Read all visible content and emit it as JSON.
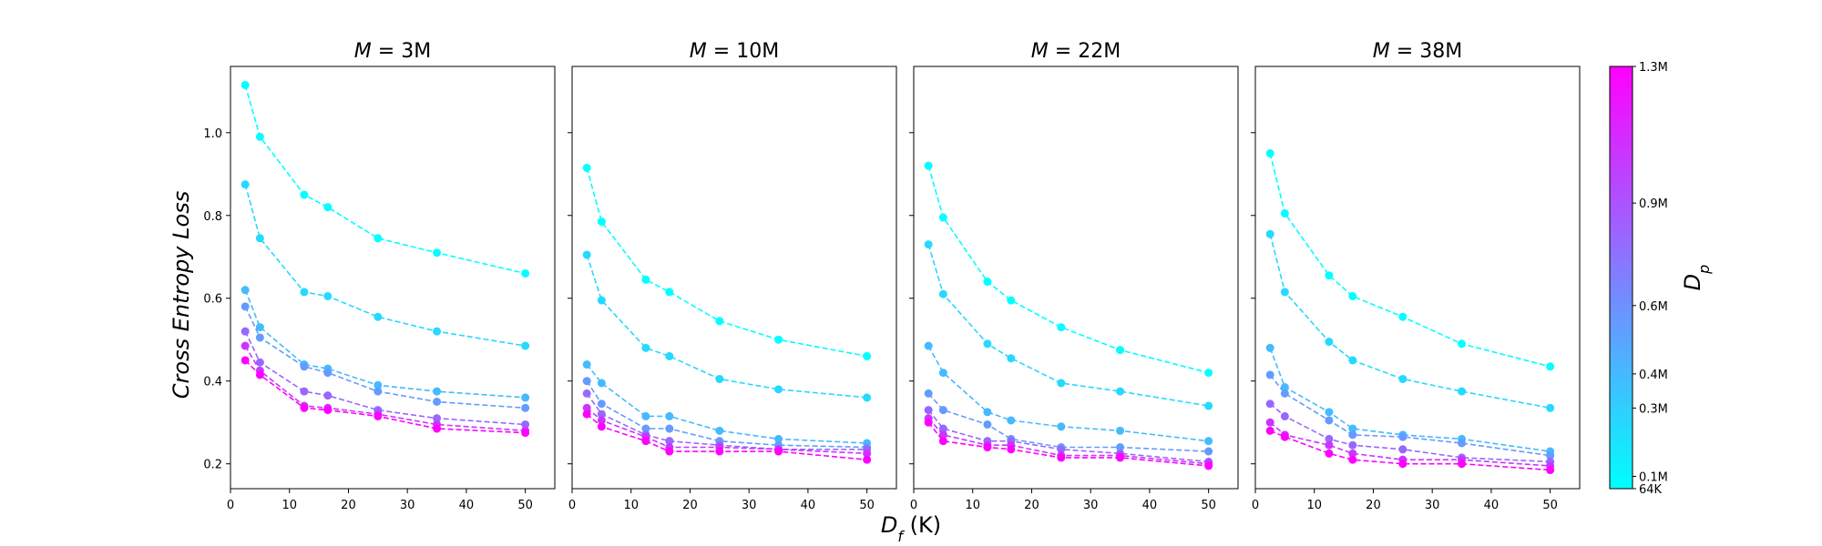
{
  "figure": {
    "ylabel": "Cross Entropy Loss",
    "xlabel_main": "D",
    "xlabel_sub": "f",
    "xlabel_unit": " (K)",
    "colorbar": {
      "label_main": "D",
      "label_sub": "p",
      "ticks": [
        {
          "value": 0.064,
          "label": "64K"
        },
        {
          "value": 0.1,
          "label": "0.1M"
        },
        {
          "value": 0.3,
          "label": "0.3M"
        },
        {
          "value": 0.4,
          "label": "0.4M"
        },
        {
          "value": 0.6,
          "label": "0.6M"
        },
        {
          "value": 0.9,
          "label": "0.9M"
        },
        {
          "value": 1.3,
          "label": "1.3M"
        }
      ],
      "range": [
        0.064,
        1.3
      ],
      "color_low": "#00ffff",
      "color_high": "#ff00ff"
    }
  },
  "chart_data": [
    {
      "type": "line",
      "title_prefix": "M",
      "title_value": " = 3M",
      "x": [
        2.5,
        5,
        12.5,
        16.5,
        25,
        35,
        50
      ],
      "xlim": [
        0,
        55
      ],
      "ylim": [
        0.14,
        1.16
      ],
      "xticks": [
        0,
        10,
        20,
        30,
        40,
        50
      ],
      "yticks": [
        0.2,
        0.4,
        0.6,
        0.8,
        1.0
      ],
      "show_yticks": true,
      "series": [
        {
          "dp": 0.064,
          "values": [
            1.115,
            0.99,
            0.85,
            0.82,
            0.745,
            0.71,
            0.66
          ]
        },
        {
          "dp": 0.25,
          "values": [
            0.875,
            0.745,
            0.615,
            0.605,
            0.555,
            0.52,
            0.485
          ]
        },
        {
          "dp": 0.4,
          "values": [
            0.62,
            0.53,
            0.44,
            0.43,
            0.39,
            0.375,
            0.36
          ]
        },
        {
          "dp": 0.55,
          "values": [
            0.58,
            0.505,
            0.435,
            0.42,
            0.375,
            0.35,
            0.335
          ]
        },
        {
          "dp": 0.8,
          "values": [
            0.52,
            0.445,
            0.375,
            0.365,
            0.33,
            0.31,
            0.295
          ]
        },
        {
          "dp": 1.05,
          "values": [
            0.485,
            0.425,
            0.34,
            0.335,
            0.32,
            0.295,
            0.28
          ]
        },
        {
          "dp": 1.3,
          "values": [
            0.45,
            0.415,
            0.335,
            0.33,
            0.315,
            0.285,
            0.275
          ]
        }
      ]
    },
    {
      "type": "line",
      "title_prefix": "M",
      "title_value": " = 10M",
      "x": [
        2.5,
        5,
        12.5,
        16.5,
        25,
        35,
        50
      ],
      "xlim": [
        0,
        55
      ],
      "ylim": [
        0.14,
        1.16
      ],
      "xticks": [
        0,
        10,
        20,
        30,
        40,
        50
      ],
      "yticks": [
        0.2,
        0.4,
        0.6,
        0.8,
        1.0
      ],
      "show_yticks": false,
      "series": [
        {
          "dp": 0.064,
          "values": [
            0.915,
            0.785,
            0.645,
            0.615,
            0.545,
            0.5,
            0.46
          ]
        },
        {
          "dp": 0.25,
          "values": [
            0.705,
            0.595,
            0.48,
            0.46,
            0.405,
            0.38,
            0.36
          ]
        },
        {
          "dp": 0.4,
          "values": [
            0.44,
            0.395,
            0.315,
            0.315,
            0.28,
            0.26,
            0.25
          ]
        },
        {
          "dp": 0.55,
          "values": [
            0.4,
            0.345,
            0.285,
            0.285,
            0.255,
            0.245,
            0.24
          ]
        },
        {
          "dp": 0.8,
          "values": [
            0.37,
            0.32,
            0.27,
            0.255,
            0.245,
            0.235,
            0.235
          ]
        },
        {
          "dp": 1.05,
          "values": [
            0.335,
            0.305,
            0.265,
            0.24,
            0.24,
            0.235,
            0.225
          ]
        },
        {
          "dp": 1.3,
          "values": [
            0.32,
            0.29,
            0.255,
            0.23,
            0.23,
            0.23,
            0.21
          ]
        }
      ]
    },
    {
      "type": "line",
      "title_prefix": "M",
      "title_value": " = 22M",
      "x": [
        2.5,
        5,
        12.5,
        16.5,
        25,
        35,
        50
      ],
      "xlim": [
        0,
        55
      ],
      "ylim": [
        0.14,
        1.16
      ],
      "xticks": [
        0,
        10,
        20,
        30,
        40,
        50
      ],
      "yticks": [
        0.2,
        0.4,
        0.6,
        0.8,
        1.0
      ],
      "show_yticks": false,
      "series": [
        {
          "dp": 0.064,
          "values": [
            0.92,
            0.795,
            0.64,
            0.595,
            0.53,
            0.475,
            0.42
          ]
        },
        {
          "dp": 0.25,
          "values": [
            0.73,
            0.61,
            0.49,
            0.455,
            0.395,
            0.375,
            0.34
          ]
        },
        {
          "dp": 0.4,
          "values": [
            0.485,
            0.42,
            0.325,
            0.305,
            0.29,
            0.28,
            0.255
          ]
        },
        {
          "dp": 0.55,
          "values": [
            0.37,
            0.33,
            0.295,
            0.26,
            0.24,
            0.24,
            0.23
          ]
        },
        {
          "dp": 0.8,
          "values": [
            0.33,
            0.285,
            0.255,
            0.255,
            0.235,
            0.225,
            0.205
          ]
        },
        {
          "dp": 1.05,
          "values": [
            0.31,
            0.27,
            0.245,
            0.245,
            0.22,
            0.22,
            0.2
          ]
        },
        {
          "dp": 1.3,
          "values": [
            0.3,
            0.255,
            0.24,
            0.235,
            0.215,
            0.215,
            0.195
          ]
        }
      ]
    },
    {
      "type": "line",
      "title_prefix": "M",
      "title_value": " = 38M",
      "x": [
        2.5,
        5,
        12.5,
        16.5,
        25,
        35,
        50
      ],
      "xlim": [
        0,
        55
      ],
      "ylim": [
        0.14,
        1.16
      ],
      "xticks": [
        0,
        10,
        20,
        30,
        40,
        50
      ],
      "yticks": [
        0.2,
        0.4,
        0.6,
        0.8,
        1.0
      ],
      "show_yticks": false,
      "series": [
        {
          "dp": 0.064,
          "values": [
            0.95,
            0.805,
            0.655,
            0.605,
            0.555,
            0.49,
            0.435
          ]
        },
        {
          "dp": 0.25,
          "values": [
            0.755,
            0.615,
            0.495,
            0.45,
            0.405,
            0.375,
            0.335
          ]
        },
        {
          "dp": 0.4,
          "values": [
            0.48,
            0.385,
            0.325,
            0.285,
            0.27,
            0.26,
            0.23
          ]
        },
        {
          "dp": 0.55,
          "values": [
            0.415,
            0.37,
            0.305,
            0.27,
            0.265,
            0.25,
            0.22
          ]
        },
        {
          "dp": 0.8,
          "values": [
            0.345,
            0.315,
            0.26,
            0.245,
            0.235,
            0.215,
            0.205
          ]
        },
        {
          "dp": 1.05,
          "values": [
            0.3,
            0.27,
            0.245,
            0.225,
            0.21,
            0.21,
            0.195
          ]
        },
        {
          "dp": 1.3,
          "values": [
            0.28,
            0.265,
            0.225,
            0.21,
            0.2,
            0.2,
            0.185
          ]
        }
      ]
    }
  ]
}
